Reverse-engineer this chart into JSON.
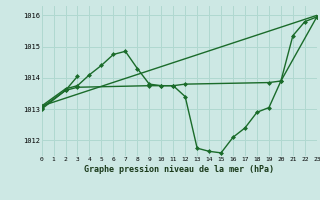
{
  "title": "Graphe pression niveau de la mer (hPa)",
  "bg_color": "#cde8e4",
  "grid_color": "#b0d8d0",
  "line_color": "#1a6b2a",
  "xmin": 0,
  "xmax": 23,
  "ymin": 1011.5,
  "ymax": 1016.3,
  "yticks": [
    1012,
    1013,
    1014,
    1015,
    1016
  ],
  "xtick_labels": [
    "0",
    "1",
    "2",
    "3",
    "4",
    "5",
    "6",
    "7",
    "8",
    "9",
    "10",
    "11",
    "12",
    "13",
    "14",
    "15",
    "16",
    "17",
    "18",
    "19",
    "20",
    "21",
    "22",
    "23"
  ],
  "line1_x": [
    0,
    2,
    3,
    4,
    5,
    6,
    7,
    8,
    9,
    10,
    11,
    12,
    13,
    14,
    15,
    16,
    17,
    18,
    19,
    20,
    21,
    22,
    23
  ],
  "line1_y": [
    1013.1,
    1013.65,
    1013.75,
    1014.1,
    1014.4,
    1014.75,
    1014.85,
    1014.3,
    1013.8,
    1013.75,
    1013.75,
    1013.4,
    1011.75,
    1011.65,
    1011.6,
    1012.1,
    1012.4,
    1012.9,
    1013.05,
    1013.9,
    1015.35,
    1015.8,
    1015.95
  ],
  "line2_x": [
    0,
    23
  ],
  "line2_y": [
    1013.1,
    1016.0
  ],
  "line3_x": [
    0,
    2,
    3,
    9,
    10,
    11,
    12,
    19,
    20,
    23
  ],
  "line3_y": [
    1013.05,
    1013.6,
    1013.7,
    1013.75,
    1013.75,
    1013.75,
    1013.8,
    1013.85,
    1013.9,
    1015.95
  ],
  "line4_x": [
    0,
    2,
    3
  ],
  "line4_y": [
    1013.0,
    1013.6,
    1014.05
  ]
}
